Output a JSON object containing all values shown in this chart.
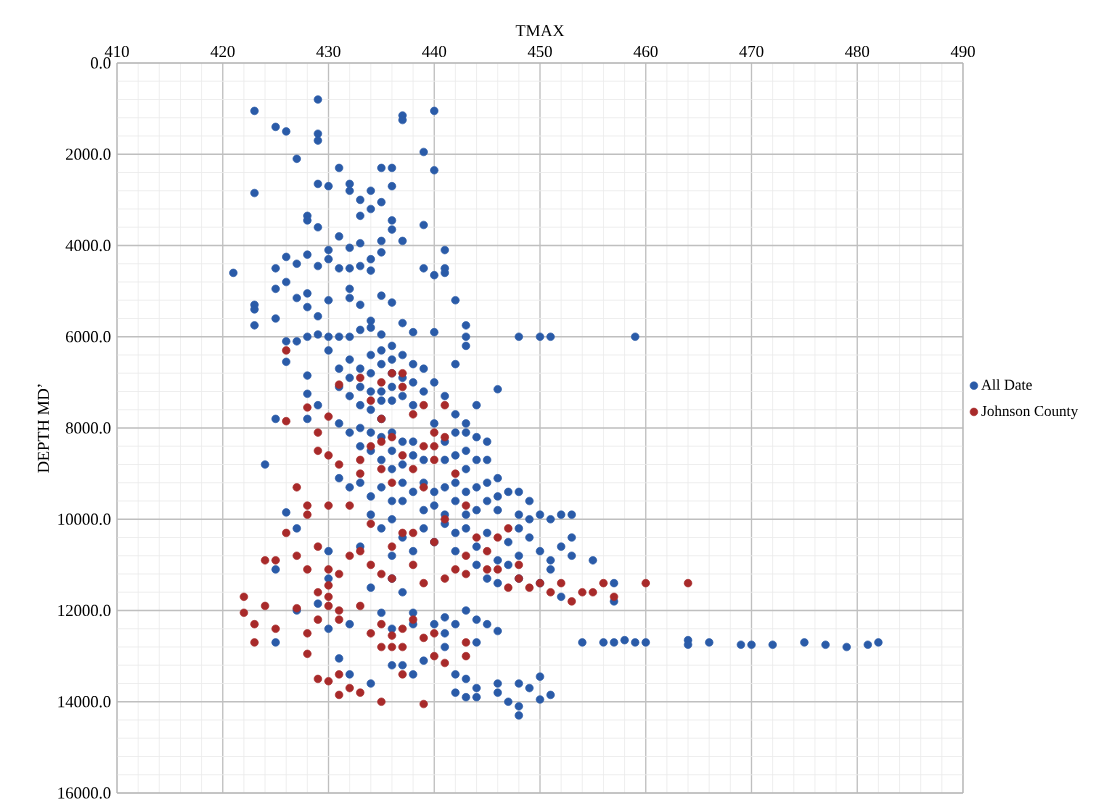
{
  "chart_data": {
    "type": "scatter",
    "xlabel": "TMAX",
    "ylabel": "DEPTH MD’",
    "xlim": [
      410,
      490
    ],
    "xticks": [
      410,
      420,
      430,
      440,
      450,
      460,
      470,
      480,
      490
    ],
    "ylim": [
      16000,
      0
    ],
    "yticks": [
      {
        "value": 0,
        "label": "0.0"
      },
      {
        "value": 2000,
        "label": "2000.0"
      },
      {
        "value": 4000,
        "label": "4000.0"
      },
      {
        "value": 6000,
        "label": "6000.0"
      },
      {
        "value": 8000,
        "label": "8000.0"
      },
      {
        "value": 10000,
        "label": "10000.0"
      },
      {
        "value": 12000,
        "label": "12000.0"
      },
      {
        "value": 14000,
        "label": "14000.0"
      },
      {
        "value": 16000,
        "label": "16000.0"
      }
    ],
    "grid": true,
    "legend": "right",
    "marker": "circle",
    "series": [
      {
        "name": "All Date",
        "color": "#2a5ba8",
        "x": [
          423,
          429,
          425,
          426,
          437,
          437,
          440,
          429,
          429,
          427,
          439,
          431,
          435,
          436,
          440,
          423,
          429,
          430,
          432,
          432,
          434,
          436,
          433,
          434,
          433,
          435,
          436,
          436,
          439,
          428,
          428,
          429,
          431,
          432,
          433,
          435,
          437,
          435,
          425,
          426,
          427,
          428,
          429,
          430,
          430,
          431,
          432,
          433,
          434,
          434,
          421,
          423,
          423,
          423,
          425,
          425,
          426,
          427,
          428,
          428,
          429,
          430,
          432,
          432,
          433,
          434,
          435,
          436,
          439,
          440,
          441,
          441,
          441,
          442,
          443,
          443,
          426,
          427,
          428,
          429,
          430,
          431,
          432,
          433,
          434,
          435,
          437,
          438,
          440,
          443,
          448,
          450,
          451,
          459,
          426,
          428,
          428,
          429,
          430,
          431,
          431,
          432,
          432,
          432,
          433,
          433,
          433,
          434,
          434,
          434,
          434,
          435,
          435,
          435,
          435,
          435,
          436,
          436,
          436,
          436,
          436,
          437,
          437,
          437,
          438,
          438,
          438,
          439,
          439,
          440,
          441,
          442,
          442,
          443,
          444,
          446,
          425,
          428,
          431,
          432,
          433,
          433,
          434,
          434,
          435,
          435,
          436,
          436,
          436,
          437,
          437,
          438,
          438,
          439,
          440,
          441,
          441,
          442,
          442,
          443,
          443,
          443,
          444,
          444,
          445,
          445,
          424,
          431,
          432,
          433,
          434,
          434,
          435,
          436,
          436,
          437,
          437,
          438,
          439,
          439,
          440,
          440,
          441,
          441,
          442,
          442,
          443,
          443,
          444,
          444,
          445,
          445,
          446,
          446,
          446,
          447,
          448,
          448,
          449,
          449,
          450,
          451,
          452,
          453,
          426,
          427,
          430,
          433,
          435,
          436,
          437,
          438,
          439,
          440,
          441,
          442,
          442,
          443,
          444,
          445,
          446,
          447,
          448,
          448,
          449,
          450,
          451,
          452,
          453,
          453,
          455,
          425,
          430,
          434,
          436,
          437,
          444,
          445,
          446,
          447,
          448,
          450,
          451,
          452,
          457,
          457,
          425,
          427,
          429,
          430,
          432,
          435,
          436,
          438,
          438,
          440,
          441,
          441,
          441,
          442,
          443,
          444,
          444,
          445,
          446,
          442,
          442,
          443,
          443,
          444,
          444,
          446,
          446,
          448,
          448,
          448,
          449,
          450,
          450,
          451,
          431,
          432,
          434,
          436,
          437,
          438,
          439,
          447,
          454,
          456,
          457,
          458,
          459,
          460,
          464,
          464,
          466,
          469,
          470,
          472,
          475,
          477,
          479,
          481,
          482
        ],
        "values": [
          1050,
          800,
          1400,
          1500,
          1150,
          1250,
          1050,
          1550,
          1700,
          2100,
          1950,
          2300,
          2300,
          2300,
          2350,
          2850,
          2650,
          2700,
          2650,
          2800,
          2800,
          2700,
          3000,
          3200,
          3350,
          3050,
          3450,
          3650,
          3550,
          3350,
          3450,
          3600,
          3800,
          4050,
          3950,
          3900,
          3900,
          4150,
          4500,
          4250,
          4400,
          4200,
          4450,
          4100,
          4300,
          4500,
          4500,
          4450,
          4300,
          4550,
          4600,
          5300,
          5400,
          5750,
          4950,
          5600,
          4800,
          5150,
          5050,
          5350,
          5550,
          5200,
          4950,
          5150,
          5300,
          5650,
          5100,
          5250,
          4500,
          4650,
          4100,
          4500,
          4600,
          5200,
          6000,
          5750,
          6100,
          6100,
          6000,
          5950,
          6000,
          6000,
          6000,
          5850,
          5800,
          5950,
          5700,
          5900,
          5900,
          6200,
          6000,
          6000,
          6000,
          6000,
          6550,
          6850,
          7250,
          7500,
          6300,
          6700,
          7100,
          6500,
          6900,
          7300,
          6700,
          7100,
          7500,
          6400,
          6800,
          7200,
          7600,
          6300,
          6600,
          7200,
          7400,
          7800,
          6200,
          6500,
          6800,
          7100,
          7400,
          6400,
          6900,
          7300,
          6600,
          7000,
          7500,
          6700,
          7200,
          7000,
          7300,
          6600,
          7700,
          7900,
          7500,
          7150,
          7800,
          7800,
          7900,
          8100,
          8000,
          8400,
          8100,
          8500,
          8200,
          8700,
          8100,
          8500,
          8900,
          8300,
          8800,
          8300,
          8600,
          8700,
          7900,
          8300,
          8700,
          8100,
          8600,
          8100,
          8500,
          8900,
          8200,
          8700,
          8300,
          8700,
          8800,
          9100,
          9300,
          9200,
          9500,
          9900,
          9300,
          9600,
          10000,
          9200,
          9600,
          9400,
          9200,
          9800,
          9400,
          9700,
          9300,
          9900,
          9200,
          9600,
          9400,
          9900,
          9300,
          9800,
          9200,
          9600,
          9100,
          9500,
          9800,
          9400,
          9400,
          9900,
          9600,
          10000,
          9900,
          10000,
          9900,
          9900,
          9850,
          10200,
          10700,
          10600,
          10200,
          10800,
          10400,
          10700,
          10200,
          10500,
          10100,
          10300,
          10700,
          10200,
          10600,
          10300,
          10900,
          10500,
          10200,
          10800,
          10400,
          10700,
          10900,
          10600,
          10400,
          10800,
          10900,
          11100,
          11300,
          11500,
          11300,
          11600,
          11000,
          11300,
          11400,
          11000,
          11300,
          11400,
          11100,
          11700,
          11400,
          11800,
          12700,
          12000,
          11850,
          12400,
          12300,
          12050,
          12400,
          12050,
          12300,
          12300,
          12150,
          12500,
          12800,
          12300,
          12000,
          12200,
          12700,
          12300,
          12450,
          13400,
          13800,
          13500,
          13900,
          13700,
          13900,
          13600,
          13800,
          13600,
          14100,
          14300,
          13700,
          13450,
          13950,
          13850,
          13050,
          13400,
          13600,
          13200,
          13200,
          13400,
          13100,
          14000,
          12700,
          12700,
          12700,
          12650,
          12700,
          12700,
          12650,
          12750,
          12700,
          12750,
          12750,
          12750,
          12700,
          12750,
          12800,
          12750,
          12700
        ]
      },
      {
        "name": "Johnson County",
        "color": "#a82a2a",
        "x": [
          426,
          426,
          428,
          430,
          431,
          433,
          434,
          435,
          435,
          436,
          437,
          437,
          438,
          439,
          440,
          440,
          440,
          441,
          441,
          429,
          429,
          430,
          431,
          433,
          433,
          434,
          435,
          435,
          436,
          436,
          437,
          438,
          439,
          439,
          442,
          443,
          427,
          428,
          428,
          430,
          432,
          434,
          436,
          437,
          438,
          440,
          441,
          443,
          444,
          445,
          446,
          447,
          448,
          424,
          425,
          426,
          427,
          428,
          429,
          430,
          431,
          432,
          433,
          434,
          435,
          436,
          438,
          439,
          441,
          442,
          443,
          445,
          446,
          447,
          448,
          449,
          450,
          451,
          452,
          453,
          454,
          455,
          456,
          457,
          460,
          464,
          422,
          422,
          423,
          423,
          424,
          425,
          427,
          428,
          429,
          429,
          430,
          430,
          431,
          431,
          433,
          434,
          435,
          435,
          436,
          436,
          437,
          437,
          438,
          439,
          440,
          440,
          441,
          443,
          443,
          429,
          430,
          431,
          432,
          433,
          431,
          435,
          437,
          439,
          428,
          430
        ],
        "values": [
          6300,
          7850,
          7550,
          7750,
          7050,
          6900,
          7400,
          7000,
          7800,
          6800,
          6800,
          7100,
          7700,
          7500,
          8100,
          8400,
          8700,
          7500,
          8200,
          8100,
          8500,
          8600,
          8800,
          8700,
          9000,
          8400,
          8300,
          8900,
          8200,
          9200,
          8600,
          8900,
          8400,
          9300,
          9000,
          9700,
          9300,
          9700,
          9900,
          9700,
          9700,
          10100,
          10600,
          10300,
          10300,
          10500,
          10000,
          10800,
          10400,
          10700,
          10400,
          10200,
          11000,
          10900,
          10900,
          10300,
          10800,
          11100,
          10600,
          11100,
          11200,
          10800,
          10700,
          11000,
          11200,
          11300,
          11000,
          11400,
          11300,
          11100,
          11200,
          11100,
          11100,
          11500,
          11300,
          11500,
          11400,
          11600,
          11400,
          11800,
          11600,
          11600,
          11400,
          11700,
          11400,
          11400,
          11700,
          12050,
          12300,
          12700,
          11900,
          12400,
          11950,
          12500,
          11600,
          12200,
          11450,
          11700,
          12000,
          12200,
          11900,
          12500,
          12300,
          12800,
          12550,
          12800,
          12400,
          12800,
          12200,
          12600,
          12500,
          13000,
          13150,
          12700,
          13000,
          13500,
          13550,
          13400,
          13700,
          13800,
          13850,
          14000,
          13400,
          14050,
          12950,
          11900
        ]
      }
    ]
  }
}
